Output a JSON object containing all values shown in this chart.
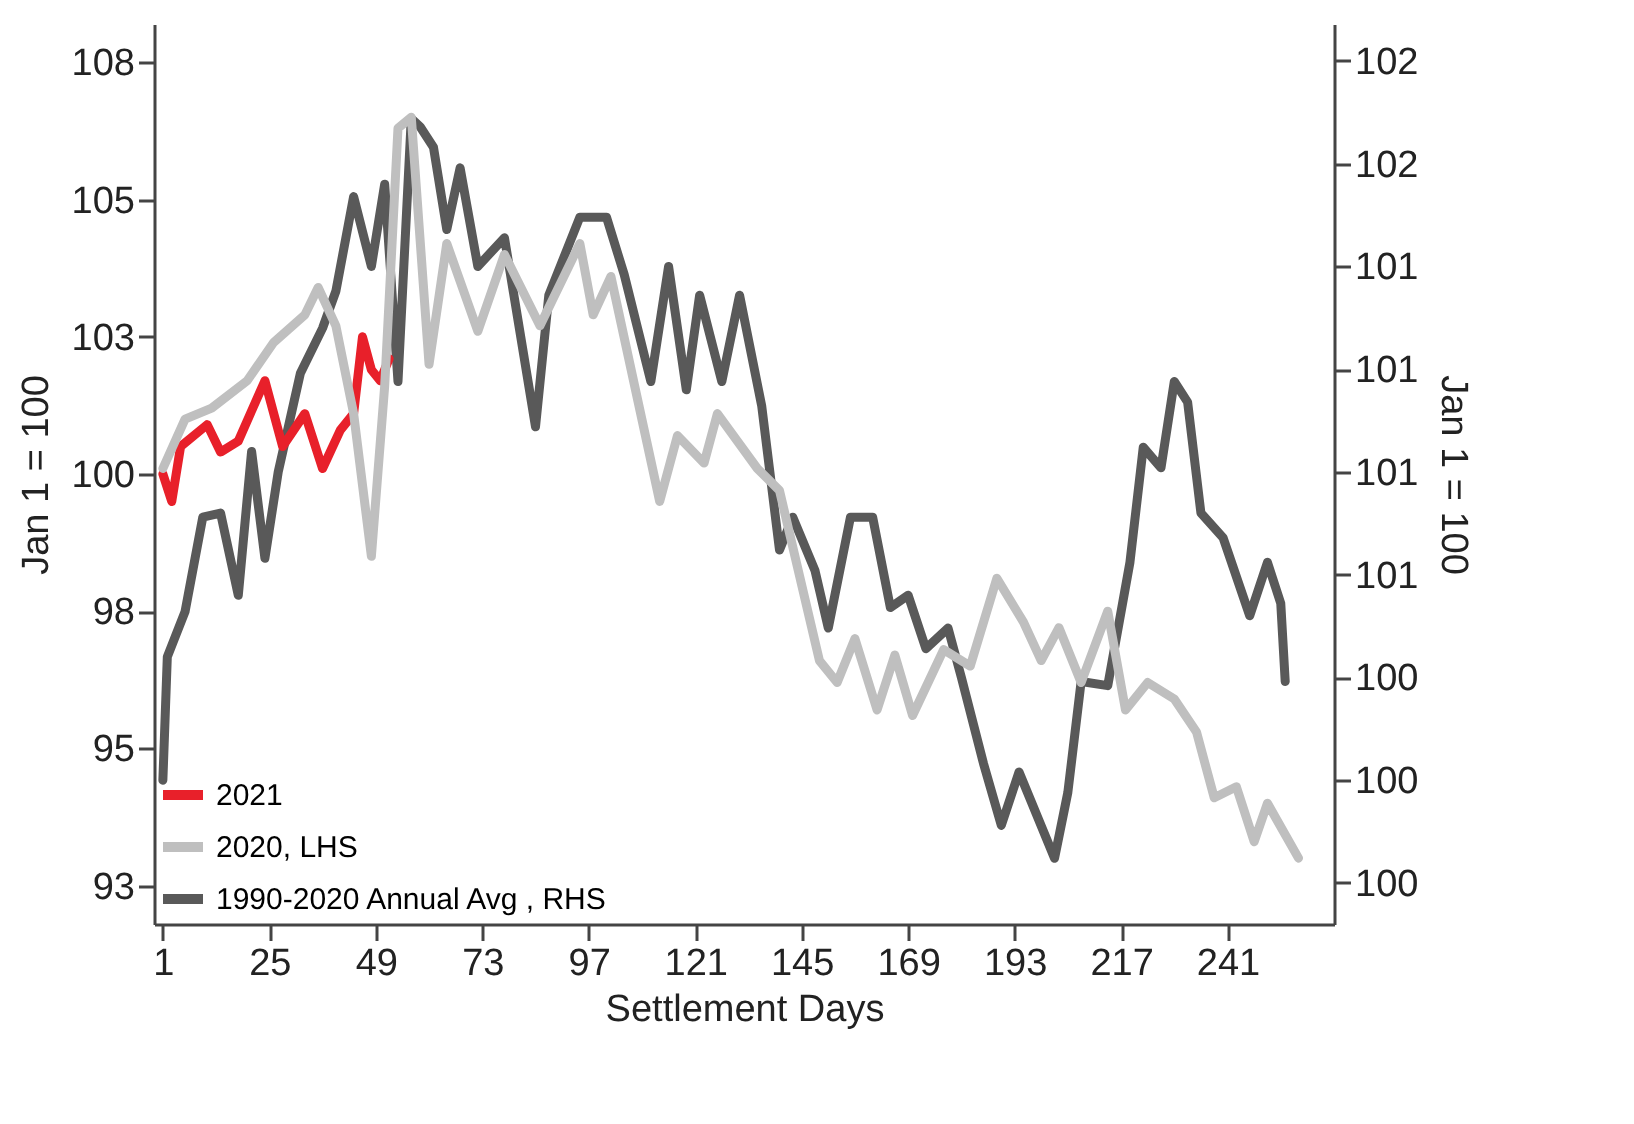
{
  "chart_data": {
    "type": "line",
    "xlabel": "Settlement Days",
    "ylabel": "Jan 1 = 100",
    "y2label": "Jan 1 = 100",
    "xlim": [
      -1,
      265
    ],
    "xticks": [
      1,
      25,
      49,
      73,
      97,
      121,
      145,
      169,
      193,
      217,
      241
    ],
    "ylim": [
      91.8,
      108.2
    ],
    "yticks": [
      {
        "value": 92.5,
        "label": "93"
      },
      {
        "value": 95,
        "label": "95"
      },
      {
        "value": 97.5,
        "label": "98"
      },
      {
        "value": 100,
        "label": "100"
      },
      {
        "value": 102.5,
        "label": "103"
      },
      {
        "value": 105,
        "label": "105"
      },
      {
        "value": 107.5,
        "label": "108"
      }
    ],
    "y2lim": [
      99.65,
      101.84
    ],
    "y2ticks": [
      {
        "value": 99.75,
        "label": "100"
      },
      {
        "value": 100,
        "label": "100"
      },
      {
        "value": 100.25,
        "label": "100"
      },
      {
        "value": 100.5,
        "label": "101"
      },
      {
        "value": 100.75,
        "label": "101"
      },
      {
        "value": 101,
        "label": "101"
      },
      {
        "value": 101.25,
        "label": "101"
      },
      {
        "value": 101.5,
        "label": "102"
      },
      {
        "value": 101.75,
        "label": "102"
      }
    ],
    "legend": "bottom left",
    "grid": false,
    "marker": "none",
    "line_style": "solid",
    "series": [
      {
        "name": "2021",
        "color": "#e8202a",
        "x": [
          1,
          3,
          5,
          11,
          14,
          18,
          24,
          28,
          33,
          37,
          41,
          44,
          46,
          48,
          50,
          52
        ],
        "values": [
          100.0,
          99.5,
          100.5,
          100.9,
          100.4,
          100.6,
          101.7,
          100.5,
          101.1,
          100.1,
          100.8,
          101.1,
          102.5,
          101.9,
          101.7,
          102.1
        ]
      },
      {
        "name": "2020, LHS",
        "color": "#bfbfbf",
        "x": [
          1,
          6,
          12,
          20,
          26,
          33,
          36,
          40,
          44,
          48,
          51,
          54,
          57,
          61,
          65,
          72,
          78,
          86,
          95,
          98,
          102,
          113,
          117,
          123,
          126,
          135,
          140,
          149,
          153,
          157,
          162,
          166,
          170,
          177,
          183,
          189,
          195,
          199,
          203,
          208,
          214,
          218,
          223,
          229,
          234,
          238,
          243,
          247,
          250,
          257
        ],
        "values": [
          100.1,
          101.0,
          101.2,
          101.7,
          102.4,
          102.9,
          103.4,
          102.7,
          101.1,
          98.5,
          101.6,
          106.3,
          106.5,
          102.0,
          104.2,
          102.6,
          104.0,
          102.7,
          104.2,
          102.9,
          103.6,
          99.5,
          100.7,
          100.2,
          101.1,
          100.1,
          99.7,
          96.6,
          96.2,
          97.0,
          95.7,
          96.7,
          95.6,
          96.8,
          96.5,
          98.1,
          97.3,
          96.6,
          97.2,
          96.2,
          97.5,
          95.7,
          96.2,
          95.9,
          95.3,
          94.1,
          94.3,
          93.3,
          94.0,
          93.0
        ]
      },
      {
        "name": "1990-2020 Annual Avg , RHS",
        "color": "#595959",
        "axis": "y2",
        "x": [
          1,
          2,
          6,
          10,
          14,
          18,
          21,
          24,
          27,
          32,
          37,
          40,
          44,
          48,
          51,
          54,
          57,
          59,
          62,
          65,
          68,
          72,
          78,
          85,
          88,
          95,
          101,
          105,
          111,
          115,
          119,
          122,
          127,
          131,
          136,
          140,
          143,
          148,
          151,
          156,
          161,
          165,
          169,
          173,
          178,
          181,
          186,
          190,
          194,
          202,
          205,
          208,
          214,
          219,
          222,
          226,
          229,
          232,
          235,
          240,
          246,
          250,
          253,
          254
        ],
        "values": [
          100.0,
          100.3,
          100.41,
          100.64,
          100.65,
          100.45,
          100.8,
          100.54,
          100.75,
          100.99,
          101.1,
          101.19,
          101.42,
          101.25,
          101.45,
          100.97,
          101.61,
          101.59,
          101.54,
          101.34,
          101.49,
          101.25,
          101.32,
          100.86,
          101.18,
          101.37,
          101.37,
          101.23,
          100.97,
          101.25,
          100.95,
          101.18,
          100.97,
          101.18,
          100.91,
          100.56,
          100.64,
          100.51,
          100.37,
          100.64,
          100.64,
          100.42,
          100.45,
          100.32,
          100.37,
          100.25,
          100.04,
          99.89,
          100.02,
          99.81,
          99.97,
          100.24,
          100.23,
          100.53,
          100.81,
          100.76,
          100.97,
          100.92,
          100.65,
          100.59,
          100.4,
          100.53,
          100.43,
          100.24
        ]
      }
    ]
  }
}
